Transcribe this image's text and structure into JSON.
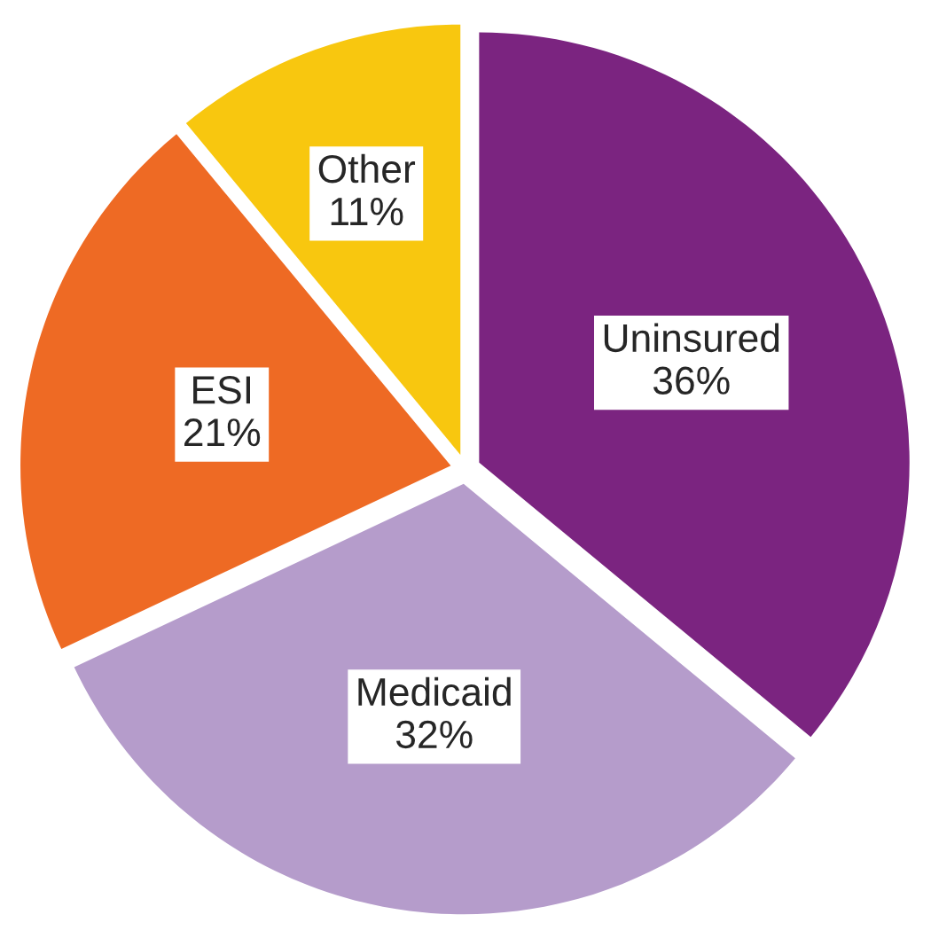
{
  "chart_data": {
    "type": "pie",
    "categories": [
      "Uninsured",
      "Medicaid",
      "ESI",
      "Other"
    ],
    "values": [
      36,
      32,
      21,
      11
    ],
    "value_labels": [
      "36%",
      "32%",
      "21%",
      "11%"
    ],
    "colors": [
      "#7b2480",
      "#b59ccb",
      "#ee6a24",
      "#f8c70f"
    ],
    "legend": false
  }
}
